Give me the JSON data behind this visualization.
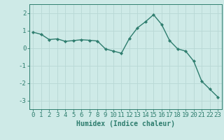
{
  "x": [
    0,
    1,
    2,
    3,
    4,
    5,
    6,
    7,
    8,
    9,
    10,
    11,
    12,
    13,
    14,
    15,
    16,
    17,
    18,
    19,
    20,
    21,
    22,
    23
  ],
  "y": [
    0.9,
    0.78,
    0.48,
    0.52,
    0.38,
    0.42,
    0.47,
    0.44,
    0.4,
    -0.05,
    -0.18,
    -0.3,
    0.55,
    1.15,
    1.5,
    1.9,
    1.35,
    0.42,
    -0.05,
    -0.18,
    -0.75,
    -1.9,
    -2.35,
    -2.8
  ],
  "xlabel": "Humidex (Indice chaleur)",
  "ylim": [
    -3.5,
    2.5
  ],
  "xlim": [
    -0.5,
    23.5
  ],
  "yticks": [
    -3,
    -2,
    -1,
    0,
    1,
    2
  ],
  "xticks": [
    0,
    1,
    2,
    3,
    4,
    5,
    6,
    7,
    8,
    9,
    10,
    11,
    12,
    13,
    14,
    15,
    16,
    17,
    18,
    19,
    20,
    21,
    22,
    23
  ],
  "line_color": "#2e7d6e",
  "marker": "D",
  "marker_size": 2.2,
  "bg_color": "#ceeae7",
  "grid_color": "#b8d8d5",
  "axis_color": "#2e7d6e",
  "label_color": "#2e7d6e",
  "tick_label_color": "#2e7d6e",
  "xlabel_fontsize": 7,
  "tick_fontsize": 6.5,
  "linewidth": 1.0
}
